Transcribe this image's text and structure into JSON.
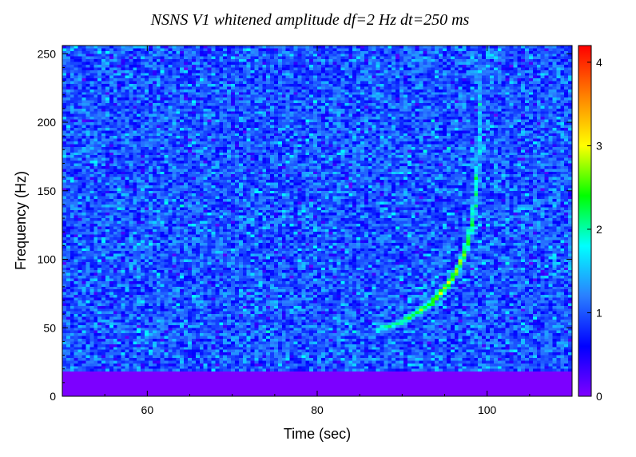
{
  "chart_data": {
    "type": "heatmap",
    "title": "NSNS V1 whitened amplitude df=2 Hz dt=250 ms",
    "xlabel": "Time (sec)",
    "ylabel": "Frequency (Hz)",
    "xlim": [
      50,
      110
    ],
    "ylim": [
      0,
      256
    ],
    "x_ticks": [
      "60",
      "80",
      "100"
    ],
    "y_ticks": [
      "0",
      "50",
      "100",
      "150",
      "200",
      "250"
    ],
    "colorbar": {
      "range": [
        0,
        4.2
      ],
      "ticks": [
        "0",
        "1",
        "2",
        "3",
        "4"
      ]
    },
    "freq_resolution_hz": 2,
    "time_resolution_s": 0.25,
    "background_amplitude_mean": 1.0,
    "low_frequency_cutoff_hz": 18,
    "chirp_track": [
      {
        "t": 87.0,
        "f": 48,
        "amp": 1.8
      },
      {
        "t": 89.0,
        "f": 52,
        "amp": 2.0
      },
      {
        "t": 91.0,
        "f": 58,
        "amp": 2.2
      },
      {
        "t": 93.0,
        "f": 66,
        "amp": 2.5
      },
      {
        "t": 95.0,
        "f": 78,
        "amp": 2.8
      },
      {
        "t": 96.5,
        "f": 92,
        "amp": 2.7
      },
      {
        "t": 97.5,
        "f": 108,
        "amp": 2.4
      },
      {
        "t": 98.2,
        "f": 125,
        "amp": 2.2
      },
      {
        "t": 98.7,
        "f": 150,
        "amp": 1.9
      },
      {
        "t": 99.0,
        "f": 180,
        "amp": 1.7
      },
      {
        "t": 99.2,
        "f": 210,
        "amp": 1.5
      },
      {
        "t": 99.4,
        "f": 245,
        "amp": 1.3
      }
    ],
    "colormap": [
      "#8000ff",
      "#0000ff",
      "#2a7fff",
      "#00ffff",
      "#00ff00",
      "#ffff00",
      "#ff8000",
      "#ff0000"
    ]
  }
}
